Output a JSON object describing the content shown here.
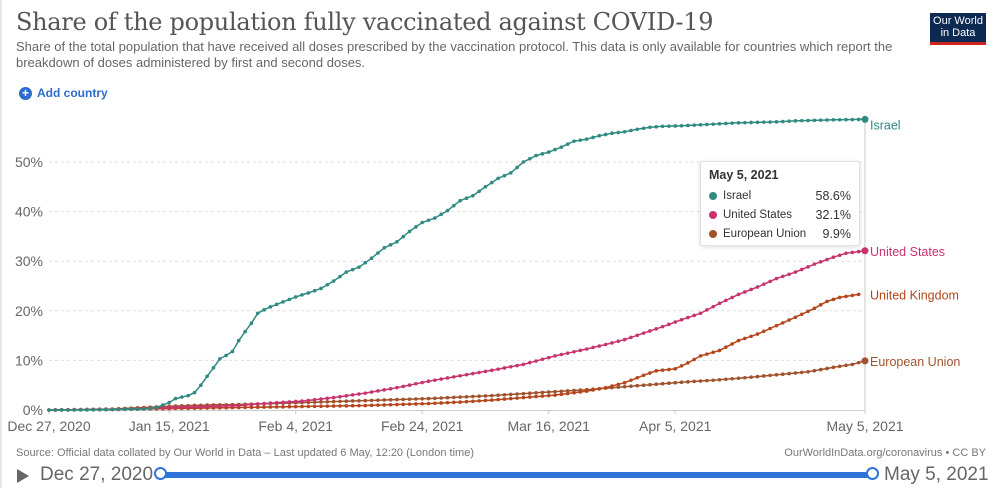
{
  "header": {
    "title": "Share of the population fully vaccinated against COVID-19",
    "subtitle": "Share of the total population that have received all doses prescribed by the vaccination protocol. This data is only available for countries which report the breakdown of doses administered by first and second doses.",
    "logo_line1": "Our World",
    "logo_line2": "in Data",
    "add_country_label": "Add country"
  },
  "tooltip": {
    "date": "May 5, 2021",
    "rows": [
      {
        "name": "Israel",
        "value": "58.6%",
        "color": "#2f8a80"
      },
      {
        "name": "United States",
        "value": "32.1%",
        "color": "#c8336e"
      },
      {
        "name": "European Union",
        "value": "9.9%",
        "color": "#a0522d"
      }
    ]
  },
  "footer": {
    "source": "Source: Official data collated by Our World in Data – Last updated 6 May, 12:20 (London time)",
    "license": "OurWorldInData.org/coronavirus • CC BY"
  },
  "timeline": {
    "start_label": "Dec 27, 2020",
    "end_label": "May 5, 2021",
    "start_fraction": 0,
    "end_fraction": 1
  },
  "chart_data": {
    "type": "line",
    "title": "Share of the population fully vaccinated against COVID-19",
    "xlabel": "",
    "ylabel": "",
    "x_unit": "days since Dec 27, 2020",
    "xlim": [
      0,
      129
    ],
    "ylim": [
      0,
      58.6
    ],
    "grid": true,
    "x_ticks": [
      {
        "day": 0,
        "label": "Dec 27, 2020"
      },
      {
        "day": 19,
        "label": "Jan 15, 2021"
      },
      {
        "day": 39,
        "label": "Feb 4, 2021"
      },
      {
        "day": 59,
        "label": "Feb 24, 2021"
      },
      {
        "day": 79,
        "label": "Mar 16, 2021"
      },
      {
        "day": 99,
        "label": "Apr 5, 2021"
      },
      {
        "day": 129,
        "label": "May 5, 2021"
      }
    ],
    "y_ticks": [
      {
        "value": 0,
        "label": "0%"
      },
      {
        "value": 10,
        "label": "10%"
      },
      {
        "value": 20,
        "label": "20%"
      },
      {
        "value": 30,
        "label": "30%"
      },
      {
        "value": 40,
        "label": "40%"
      },
      {
        "value": 50,
        "label": "50%"
      }
    ],
    "series": [
      {
        "name": "Israel",
        "label": "Israel",
        "color": "#2f8a80",
        "points": [
          [
            0,
            0
          ],
          [
            5,
            0
          ],
          [
            10,
            0.1
          ],
          [
            15,
            0.2
          ],
          [
            17,
            0.5
          ],
          [
            19,
            1.5
          ],
          [
            20,
            2.3
          ],
          [
            22,
            2.9
          ],
          [
            23,
            3.5
          ],
          [
            24,
            5
          ],
          [
            25,
            6.8
          ],
          [
            26,
            8.5
          ],
          [
            27,
            10.3
          ],
          [
            28,
            11
          ],
          [
            29,
            11.8
          ],
          [
            30,
            14
          ],
          [
            31,
            15.8
          ],
          [
            32,
            17.5
          ],
          [
            33,
            19.5
          ],
          [
            34,
            20.2
          ],
          [
            35,
            20.8
          ],
          [
            37,
            21.8
          ],
          [
            39,
            22.8
          ],
          [
            41,
            23.6
          ],
          [
            43,
            24.5
          ],
          [
            45,
            26
          ],
          [
            47,
            27.8
          ],
          [
            49,
            28.8
          ],
          [
            51,
            30.6
          ],
          [
            53,
            32.7
          ],
          [
            55,
            33.9
          ],
          [
            57,
            36
          ],
          [
            59,
            37.8
          ],
          [
            61,
            38.7
          ],
          [
            63,
            40.2
          ],
          [
            65,
            42.2
          ],
          [
            67,
            43.2
          ],
          [
            69,
            45
          ],
          [
            71,
            46.7
          ],
          [
            73,
            47.8
          ],
          [
            75,
            50
          ],
          [
            77,
            51.3
          ],
          [
            79,
            52
          ],
          [
            81,
            53
          ],
          [
            83,
            54.2
          ],
          [
            85,
            54.6
          ],
          [
            87,
            55.3
          ],
          [
            89,
            55.8
          ],
          [
            91,
            56.1
          ],
          [
            93,
            56.6
          ],
          [
            95,
            57
          ],
          [
            97,
            57.2
          ],
          [
            100,
            57.3
          ],
          [
            103,
            57.5
          ],
          [
            106,
            57.7
          ],
          [
            109,
            57.9
          ],
          [
            112,
            58
          ],
          [
            115,
            58.1
          ],
          [
            118,
            58.3
          ],
          [
            121,
            58.4
          ],
          [
            124,
            58.5
          ],
          [
            129,
            58.6
          ]
        ]
      },
      {
        "name": "United States",
        "label": "United States",
        "color": "#c8336e",
        "points": [
          [
            0,
            0
          ],
          [
            10,
            0.1
          ],
          [
            15,
            0.3
          ],
          [
            20,
            0.5
          ],
          [
            25,
            0.7
          ],
          [
            30,
            0.9
          ],
          [
            35,
            1.4
          ],
          [
            40,
            1.8
          ],
          [
            45,
            2.5
          ],
          [
            50,
            3.4
          ],
          [
            55,
            4.5
          ],
          [
            60,
            5.8
          ],
          [
            65,
            6.9
          ],
          [
            70,
            8
          ],
          [
            75,
            9.2
          ],
          [
            80,
            10.9
          ],
          [
            85,
            12.3
          ],
          [
            88,
            13.2
          ],
          [
            91,
            14.2
          ],
          [
            94,
            15.5
          ],
          [
            97,
            16.8
          ],
          [
            100,
            18.2
          ],
          [
            103,
            19.5
          ],
          [
            106,
            21.5
          ],
          [
            109,
            23.3
          ],
          [
            112,
            24.8
          ],
          [
            115,
            26.5
          ],
          [
            118,
            27.8
          ],
          [
            121,
            29.4
          ],
          [
            124,
            30.8
          ],
          [
            126,
            31.6
          ],
          [
            129,
            32.1
          ]
        ]
      },
      {
        "name": "United Kingdom",
        "label": "United Kingdom",
        "color": "#b5451b",
        "points": [
          [
            0,
            0
          ],
          [
            10,
            0.1
          ],
          [
            15,
            0.2
          ],
          [
            20,
            0.3
          ],
          [
            25,
            0.4
          ],
          [
            30,
            0.5
          ],
          [
            35,
            0.6
          ],
          [
            40,
            0.7
          ],
          [
            45,
            0.8
          ],
          [
            50,
            0.9
          ],
          [
            55,
            1.1
          ],
          [
            60,
            1.3
          ],
          [
            65,
            1.6
          ],
          [
            70,
            2
          ],
          [
            75,
            2.5
          ],
          [
            80,
            3
          ],
          [
            85,
            3.8
          ],
          [
            88,
            4.5
          ],
          [
            91,
            5.5
          ],
          [
            94,
            7
          ],
          [
            96,
            7.9
          ],
          [
            99,
            8.3
          ],
          [
            101,
            9.5
          ],
          [
            103,
            10.9
          ],
          [
            106,
            12
          ],
          [
            109,
            14
          ],
          [
            112,
            15.3
          ],
          [
            115,
            17
          ],
          [
            118,
            18.7
          ],
          [
            121,
            20.5
          ],
          [
            123,
            21.9
          ],
          [
            125,
            22.7
          ],
          [
            128,
            23.3
          ]
        ]
      },
      {
        "name": "European Union",
        "label": "European Union",
        "color": "#a0522d",
        "points": [
          [
            0,
            0
          ],
          [
            10,
            0.2
          ],
          [
            15,
            0.5
          ],
          [
            20,
            0.8
          ],
          [
            25,
            1
          ],
          [
            30,
            1.1
          ],
          [
            35,
            1.3
          ],
          [
            40,
            1.5
          ],
          [
            45,
            1.7
          ],
          [
            50,
            1.9
          ],
          [
            55,
            2.1
          ],
          [
            60,
            2.3
          ],
          [
            65,
            2.6
          ],
          [
            70,
            2.9
          ],
          [
            75,
            3.3
          ],
          [
            80,
            3.7
          ],
          [
            85,
            4.1
          ],
          [
            90,
            4.6
          ],
          [
            95,
            5.1
          ],
          [
            100,
            5.6
          ],
          [
            105,
            6
          ],
          [
            110,
            6.5
          ],
          [
            115,
            7.1
          ],
          [
            120,
            7.7
          ],
          [
            124,
            8.6
          ],
          [
            127,
            9.2
          ],
          [
            129,
            9.9
          ]
        ]
      }
    ]
  }
}
